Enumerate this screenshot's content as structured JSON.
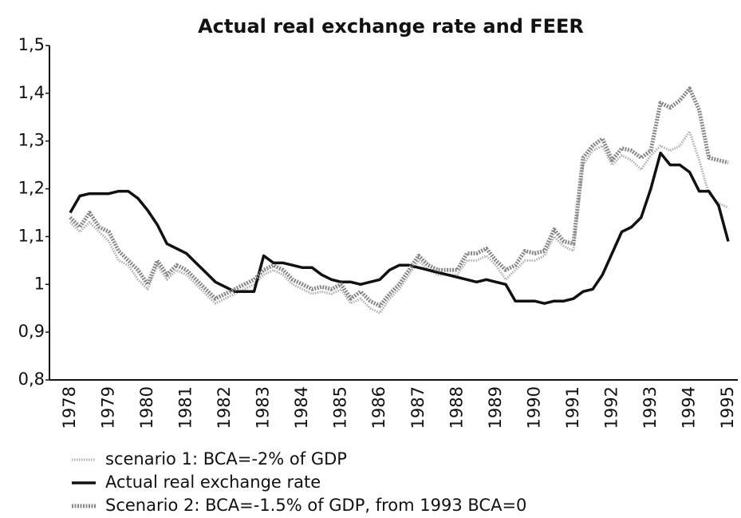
{
  "chart_data": {
    "type": "line",
    "title": "Actual real exchange rate and FEER",
    "categories": [
      "1978",
      null,
      null,
      null,
      "1979",
      null,
      null,
      null,
      "1980",
      null,
      null,
      null,
      "1981",
      null,
      null,
      null,
      "1982",
      null,
      null,
      null,
      "1983",
      null,
      null,
      null,
      "1984",
      null,
      null,
      null,
      "1985",
      null,
      null,
      null,
      "1986",
      null,
      null,
      null,
      "1987",
      null,
      null,
      null,
      "1988",
      null,
      null,
      null,
      "1989",
      null,
      null,
      null,
      "1990",
      null,
      null,
      null,
      "1991",
      null,
      null,
      null,
      "1992",
      null,
      null,
      null,
      "1993",
      null,
      null,
      null,
      "1994",
      null,
      null,
      null,
      "1995"
    ],
    "series": [
      {
        "name": "scenario 1: BCA=-2% of GDP",
        "color": "#b0b0b0",
        "values": [
          1.13,
          1.11,
          1.13,
          1.11,
          1.09,
          1.05,
          1.04,
          1.01,
          0.99,
          1.04,
          1.01,
          1.03,
          1.02,
          1.0,
          0.98,
          0.96,
          0.97,
          0.98,
          0.99,
          1.0,
          1.02,
          1.03,
          1.02,
          1.0,
          0.99,
          0.98,
          0.985,
          0.98,
          0.99,
          0.96,
          0.97,
          0.95,
          0.94,
          0.97,
          0.99,
          1.02,
          1.05,
          1.03,
          1.02,
          1.02,
          1.02,
          1.05,
          1.05,
          1.06,
          1.04,
          1.01,
          1.03,
          1.05,
          1.05,
          1.06,
          1.1,
          1.08,
          1.07,
          1.25,
          1.28,
          1.29,
          1.25,
          1.27,
          1.26,
          1.24,
          1.27,
          1.29,
          1.28,
          1.29,
          1.32,
          1.26,
          1.19,
          1.17,
          1.16
        ]
      },
      {
        "name": "Actual real exchange rate",
        "color": "#111111",
        "values": [
          1.15,
          1.185,
          1.19,
          1.19,
          1.19,
          1.195,
          1.195,
          1.18,
          1.155,
          1.125,
          1.085,
          1.075,
          1.065,
          1.045,
          1.025,
          1.005,
          0.995,
          0.985,
          0.985,
          0.985,
          1.06,
          1.045,
          1.045,
          1.04,
          1.035,
          1.035,
          1.02,
          1.01,
          1.005,
          1.005,
          1.0,
          1.005,
          1.01,
          1.03,
          1.04,
          1.04,
          1.035,
          1.03,
          1.025,
          1.02,
          1.015,
          1.01,
          1.005,
          1.01,
          1.005,
          1.0,
          0.965,
          0.965,
          0.965,
          0.96,
          0.965,
          0.965,
          0.97,
          0.985,
          0.99,
          1.02,
          1.065,
          1.11,
          1.12,
          1.14,
          1.2,
          1.275,
          1.25,
          1.25,
          1.235,
          1.195,
          1.195,
          1.165,
          1.09
        ]
      },
      {
        "name": "Scenario 2: BCA=-1.5% of GDP, from 1993 BCA=0",
        "color": "#888888",
        "values": [
          1.14,
          1.12,
          1.15,
          1.12,
          1.11,
          1.07,
          1.05,
          1.03,
          1.0,
          1.05,
          1.02,
          1.04,
          1.03,
          1.01,
          0.99,
          0.97,
          0.98,
          0.99,
          1.0,
          1.01,
          1.03,
          1.04,
          1.03,
          1.01,
          1.0,
          0.99,
          0.995,
          0.99,
          1.0,
          0.97,
          0.985,
          0.965,
          0.955,
          0.98,
          1.0,
          1.03,
          1.06,
          1.04,
          1.03,
          1.03,
          1.03,
          1.065,
          1.065,
          1.075,
          1.05,
          1.03,
          1.04,
          1.07,
          1.065,
          1.07,
          1.115,
          1.09,
          1.085,
          1.265,
          1.29,
          1.305,
          1.26,
          1.285,
          1.28,
          1.265,
          1.28,
          1.38,
          1.37,
          1.385,
          1.41,
          1.365,
          1.265,
          1.26,
          1.255
        ]
      }
    ],
    "ylim": [
      0.8,
      1.5
    ],
    "yticks": [
      {
        "value": 0.8,
        "label": "0,8"
      },
      {
        "value": 0.9,
        "label": "0,9"
      },
      1,
      {
        "value": 1.1,
        "label": "1,1"
      },
      {
        "value": 1.2,
        "label": "1,2"
      },
      {
        "value": 1.3,
        "label": "1,3"
      },
      {
        "value": 1.4,
        "label": "1,4"
      },
      {
        "value": 1.5,
        "label": "1,5"
      }
    ],
    "grid": false,
    "legend": "bottom-left"
  }
}
